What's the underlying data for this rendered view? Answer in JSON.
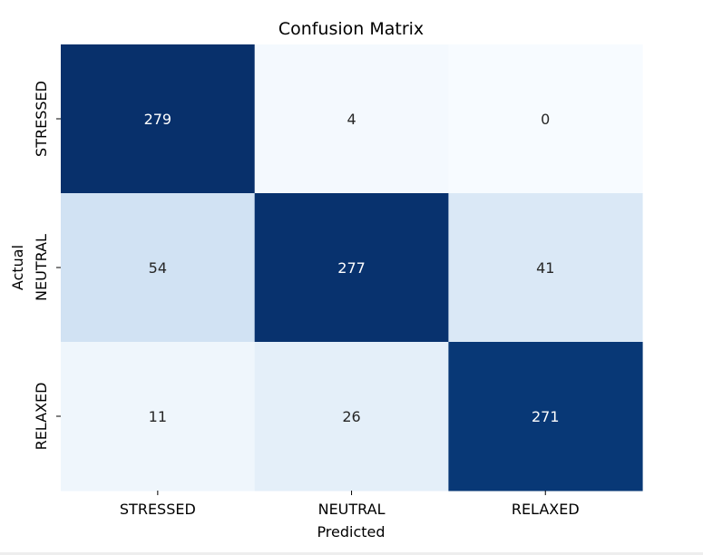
{
  "chart_data": {
    "type": "heatmap",
    "title": "Confusion Matrix",
    "xlabel": "Predicted",
    "ylabel": "Actual",
    "x_categories": [
      "STRESSED",
      "NEUTRAL",
      "RELAXED"
    ],
    "y_categories": [
      "STRESSED",
      "NEUTRAL",
      "RELAXED"
    ],
    "values": [
      [
        279,
        4,
        0
      ],
      [
        54,
        277,
        41
      ],
      [
        11,
        26,
        271
      ]
    ],
    "colormap": "Blues",
    "colorbar": false,
    "annotations": true
  }
}
